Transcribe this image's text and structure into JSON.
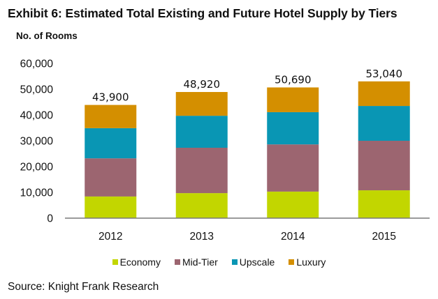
{
  "title": "Exhibit 6: Estimated Total Existing and Future Hotel Supply by Tiers",
  "source": "Source: Knight Frank Research",
  "chart_data": {
    "type": "bar",
    "stacked": true,
    "title": "Exhibit 6: Estimated Total Existing and Future Hotel Supply by Tiers",
    "xlabel": "",
    "ylabel": "No. of Rooms",
    "ylim": [
      0,
      60000
    ],
    "yticks": [
      0,
      10000,
      20000,
      30000,
      40000,
      50000,
      60000
    ],
    "ytick_labels": [
      "0",
      "10,000",
      "20,000",
      "30,000",
      "40,000",
      "50,000",
      "60,000"
    ],
    "grid": false,
    "legend_position": "bottom",
    "categories": [
      "2012",
      "2013",
      "2014",
      "2015"
    ],
    "series": [
      {
        "name": "Economy",
        "color": "#c2d600",
        "values": [
          8400,
          9700,
          10300,
          10800
        ]
      },
      {
        "name": "Mid-Tier",
        "color": "#9c6570",
        "values": [
          14800,
          17600,
          18300,
          19200
        ]
      },
      {
        "name": "Upscale",
        "color": "#0996b4",
        "values": [
          11700,
          12400,
          12500,
          13500
        ]
      },
      {
        "name": "Luxury",
        "color": "#d48f00",
        "values": [
          9000,
          9220,
          9590,
          9540
        ]
      }
    ],
    "totals": [
      43900,
      48920,
      50690,
      53040
    ],
    "total_labels": [
      "43,900",
      "48,920",
      "50,690",
      "53,040"
    ]
  }
}
